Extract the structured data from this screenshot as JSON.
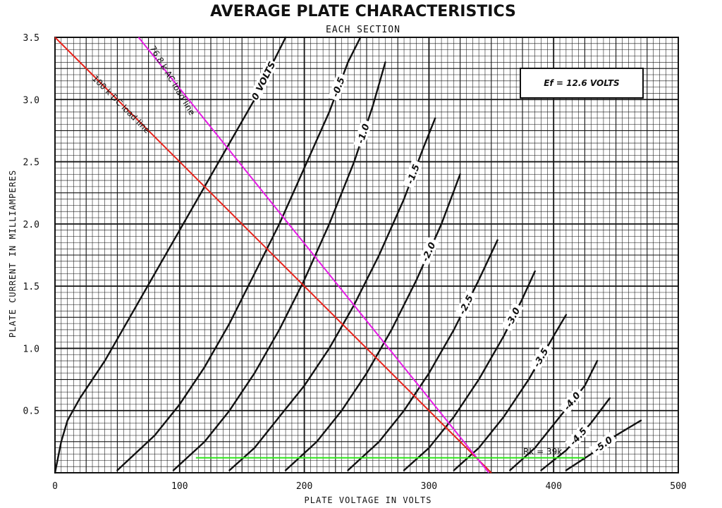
{
  "chart_data": {
    "type": "line",
    "title": "AVERAGE PLATE CHARACTERISTICS",
    "subtitle": "EACH SECTION",
    "xlabel": "PLATE VOLTAGE IN VOLTS",
    "ylabel": "PLATE CURRENT IN MILLIAMPERES",
    "xlim": [
      0,
      500
    ],
    "ylim": [
      0,
      3.5
    ],
    "x_ticks": [
      "0",
      "100",
      "200",
      "300",
      "400",
      "500"
    ],
    "y_ticks": [
      "0.5",
      "1.0",
      "1.5",
      "2.0",
      "2.5",
      "3.0",
      "3.5"
    ],
    "grid": true,
    "annotation": "Ef = 12.6 VOLTS",
    "series": [
      {
        "name": "0 VOLTS",
        "points": [
          [
            0,
            0
          ],
          [
            5,
            0.25
          ],
          [
            10,
            0.42
          ],
          [
            20,
            0.6
          ],
          [
            40,
            0.9
          ],
          [
            60,
            1.25
          ],
          [
            80,
            1.6
          ],
          [
            100,
            1.95
          ],
          [
            120,
            2.3
          ],
          [
            140,
            2.65
          ],
          [
            160,
            3.0
          ],
          [
            175,
            3.3
          ],
          [
            185,
            3.5
          ]
        ]
      },
      {
        "name": "-0.5",
        "points": [
          [
            50,
            0.02
          ],
          [
            80,
            0.3
          ],
          [
            100,
            0.55
          ],
          [
            120,
            0.85
          ],
          [
            140,
            1.2
          ],
          [
            160,
            1.6
          ],
          [
            180,
            2.0
          ],
          [
            200,
            2.45
          ],
          [
            220,
            2.9
          ],
          [
            235,
            3.3
          ],
          [
            245,
            3.5
          ]
        ]
      },
      {
        "name": "-1.0",
        "points": [
          [
            95,
            0.02
          ],
          [
            120,
            0.25
          ],
          [
            140,
            0.5
          ],
          [
            160,
            0.8
          ],
          [
            180,
            1.15
          ],
          [
            200,
            1.55
          ],
          [
            220,
            2.0
          ],
          [
            240,
            2.5
          ],
          [
            255,
            2.95
          ],
          [
            265,
            3.3
          ]
        ]
      },
      {
        "name": "-1.5",
        "points": [
          [
            140,
            0.02
          ],
          [
            160,
            0.2
          ],
          [
            180,
            0.45
          ],
          [
            200,
            0.7
          ],
          [
            220,
            1.0
          ],
          [
            240,
            1.35
          ],
          [
            260,
            1.75
          ],
          [
            280,
            2.2
          ],
          [
            295,
            2.6
          ],
          [
            305,
            2.85
          ]
        ]
      },
      {
        "name": "-2.0",
        "points": [
          [
            185,
            0.02
          ],
          [
            210,
            0.25
          ],
          [
            230,
            0.5
          ],
          [
            250,
            0.8
          ],
          [
            270,
            1.15
          ],
          [
            290,
            1.55
          ],
          [
            310,
            2.0
          ],
          [
            325,
            2.4
          ]
        ]
      },
      {
        "name": "-2.5",
        "points": [
          [
            235,
            0.02
          ],
          [
            260,
            0.25
          ],
          [
            280,
            0.5
          ],
          [
            300,
            0.8
          ],
          [
            320,
            1.15
          ],
          [
            340,
            1.55
          ],
          [
            355,
            1.87
          ]
        ]
      },
      {
        "name": "-3.0",
        "points": [
          [
            280,
            0.02
          ],
          [
            300,
            0.2
          ],
          [
            320,
            0.45
          ],
          [
            340,
            0.75
          ],
          [
            360,
            1.1
          ],
          [
            375,
            1.4
          ],
          [
            385,
            1.62
          ]
        ]
      },
      {
        "name": "-3.5",
        "points": [
          [
            320,
            0.02
          ],
          [
            340,
            0.2
          ],
          [
            360,
            0.45
          ],
          [
            380,
            0.75
          ],
          [
            400,
            1.1
          ],
          [
            410,
            1.27
          ]
        ]
      },
      {
        "name": "-4.0",
        "points": [
          [
            365,
            0.02
          ],
          [
            385,
            0.2
          ],
          [
            405,
            0.45
          ],
          [
            425,
            0.7
          ],
          [
            435,
            0.9
          ]
        ]
      },
      {
        "name": "-4.5",
        "points": [
          [
            390,
            0.02
          ],
          [
            410,
            0.18
          ],
          [
            430,
            0.4
          ],
          [
            445,
            0.6
          ]
        ]
      },
      {
        "name": "-5.0",
        "points": [
          [
            410,
            0.02
          ],
          [
            430,
            0.15
          ],
          [
            450,
            0.3
          ],
          [
            470,
            0.42
          ]
        ]
      }
    ],
    "load_lines": [
      {
        "name": "100 k DC load line",
        "color": "#e8231b",
        "points": [
          [
            0,
            3.5
          ],
          [
            350,
            0
          ]
        ]
      },
      {
        "name": "76.8 k AC load line",
        "color": "#e61de6",
        "points": [
          [
            67,
            3.5
          ],
          [
            348,
            0
          ]
        ]
      },
      {
        "name": "Rk = 39k",
        "color": "#2fe61b",
        "points": [
          [
            113,
            0.12
          ],
          [
            425,
            0.12
          ]
        ]
      }
    ]
  },
  "colors": {
    "grid": "#111111",
    "curve": "#111111",
    "dc_load": "#e8231b",
    "ac_load": "#e61de6",
    "bias": "#2fe61b"
  },
  "labels": {
    "ef": "Ef = 12.6 VOLTS",
    "dc_load": "100 k DC load line",
    "ac_load": "76.8 k AC load line",
    "rk": "Rk = 39k"
  }
}
